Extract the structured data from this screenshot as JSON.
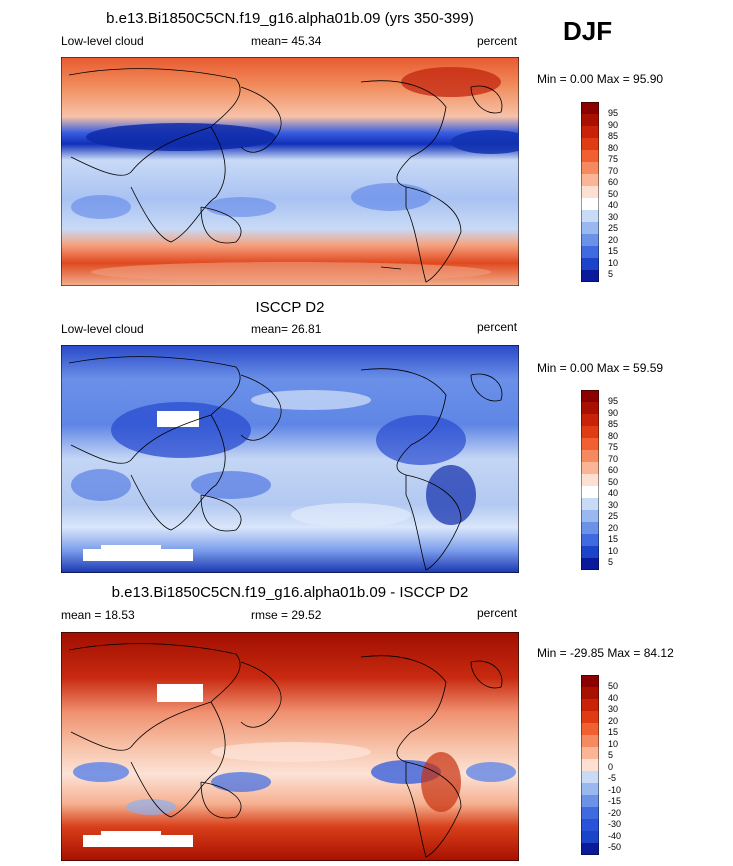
{
  "season": "DJF",
  "colors": {
    "deep_red": "#8b0000",
    "red": "#e0401a",
    "light_red": "#f7b39a",
    "white": "#ffffff",
    "light_blue": "#b6cdf5",
    "blue": "#5a82e8",
    "deep_blue": "#0a1a9a"
  },
  "panels": [
    {
      "title": "b.e13.Bi1850C5CN.f19_g16.alpha01b.09 (yrs 350-399)",
      "left_label": "Low-level cloud",
      "center_label": "mean=  45.34",
      "right_label": "percent",
      "minmax": "Min =   0.00 Max =  95.90",
      "colorbar_labels": [
        "95",
        "90",
        "85",
        "80",
        "75",
        "70",
        "60",
        "50",
        "40",
        "30",
        "25",
        "20",
        "15",
        "10",
        "5"
      ]
    },
    {
      "title": "ISCCP D2",
      "left_label": "Low-level cloud",
      "center_label": "mean=  26.81",
      "right_label": "percent",
      "minmax": "Min =   0.00 Max =  59.59",
      "colorbar_labels": [
        "95",
        "90",
        "85",
        "80",
        "75",
        "70",
        "60",
        "50",
        "40",
        "30",
        "25",
        "20",
        "15",
        "10",
        "5"
      ]
    },
    {
      "title": "b.e13.Bi1850C5CN.f19_g16.alpha01b.09 - ISCCP D2",
      "left_label": "mean =  18.53",
      "center_label": "rmse =  29.52",
      "right_label": "percent",
      "minmax": "Min = -29.85 Max =  84.12",
      "colorbar_labels": [
        "50",
        "40",
        "30",
        "20",
        "15",
        "10",
        "5",
        "0",
        "-5",
        "-10",
        "-15",
        "-20",
        "-30",
        "-40",
        "-50"
      ]
    }
  ]
}
